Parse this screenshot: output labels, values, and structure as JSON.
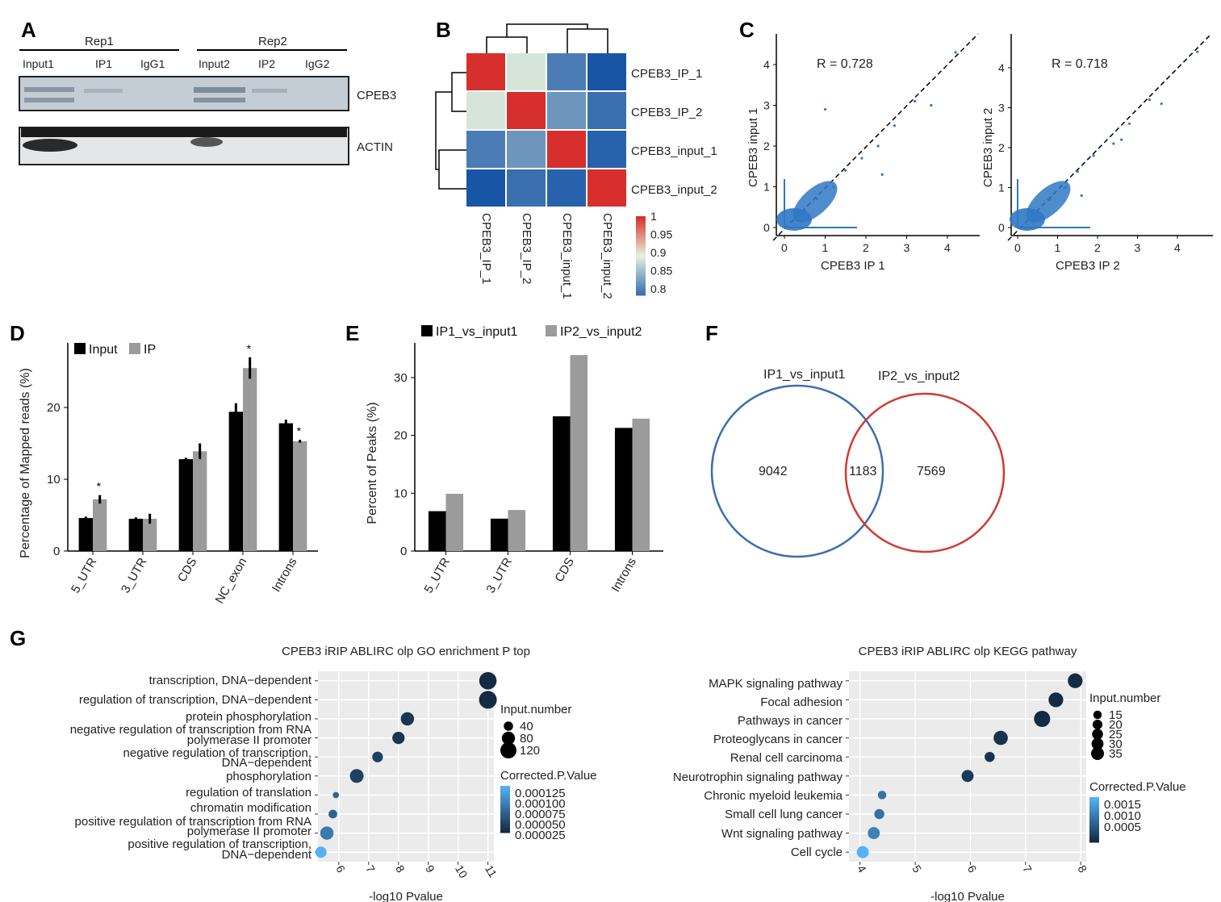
{
  "panel_letters": [
    "A",
    "B",
    "C",
    "D",
    "E",
    "F",
    "G"
  ],
  "blot": {
    "rep_labels": [
      "Rep1",
      "Rep2"
    ],
    "lanes": [
      "Input1",
      "IP1",
      "IgG1",
      "Input2",
      "IP2",
      "IgG2"
    ],
    "bands": [
      "CPEB3",
      "ACTIN"
    ]
  },
  "chart_data": [
    {
      "panel": "B",
      "type": "heatmap",
      "rows": [
        "CPEB3_IP_1",
        "CPEB3_IP_2",
        "CPEB3_input_1",
        "CPEB3_input_2"
      ],
      "cols": [
        "CPEB3_IP_1",
        "CPEB3_IP_2",
        "CPEB3_input_1",
        "CPEB3_input_2"
      ],
      "values": [
        [
          1,
          0.89,
          0.81,
          0.78
        ],
        [
          0.89,
          1,
          0.83,
          0.8
        ],
        [
          0.81,
          0.83,
          1,
          0.79
        ],
        [
          0.78,
          0.8,
          0.79,
          1
        ]
      ],
      "colorbar_ticks": [
        "1",
        "0.95",
        "0.9",
        "0.85",
        "0.8"
      ],
      "colors": {
        "low": "#3a6fb0",
        "mid": "#e6f2dd",
        "high": "#d7302c"
      }
    },
    {
      "panel": "C",
      "type": "scatter",
      "plots": [
        {
          "xlabel": "CPEB3 IP 1",
          "ylabel": "CPEB3 input 1",
          "annotation": "R = 0.728",
          "xticks": [
            "0",
            "1",
            "2",
            "3",
            "4"
          ],
          "yticks": [
            "0",
            "1",
            "2",
            "3",
            "4"
          ],
          "points": [
            [
              0.5,
              0.4
            ],
            [
              0.8,
              0.7
            ],
            [
              1.2,
              1.0
            ],
            [
              1.5,
              1.4
            ],
            [
              1.9,
              1.7
            ],
            [
              2.3,
              2.0
            ],
            [
              2.7,
              2.5
            ],
            [
              3.2,
              3.1
            ],
            [
              3.6,
              3.0
            ],
            [
              4.2,
              4.3
            ],
            [
              1.0,
              2.9
            ],
            [
              2.4,
              1.3
            ]
          ]
        },
        {
          "xlabel": "CPEB3 IP 2",
          "ylabel": "CPEB3 input 2",
          "annotation": "R = 0.718",
          "xticks": [
            "0",
            "1",
            "2",
            "3",
            "4"
          ],
          "yticks": [
            "0",
            "1",
            "2",
            "3",
            "4"
          ],
          "points": [
            [
              0.5,
              0.4
            ],
            [
              0.8,
              0.7
            ],
            [
              1.2,
              1.0
            ],
            [
              1.5,
              1.4
            ],
            [
              1.9,
              1.8
            ],
            [
              2.4,
              2.1
            ],
            [
              2.8,
              2.6
            ],
            [
              3.3,
              3.2
            ],
            [
              3.6,
              3.1
            ],
            [
              4.5,
              4.4
            ],
            [
              2.6,
              2.2
            ],
            [
              1.6,
              0.8
            ]
          ]
        }
      ],
      "point_color": "#2f78c4"
    },
    {
      "panel": "D",
      "type": "bar",
      "categories": [
        "5_UTR",
        "3_UTR",
        "CDS",
        "NC_exon",
        "Introns"
      ],
      "series": [
        {
          "name": "Input",
          "values": [
            4.6,
            4.5,
            12.8,
            19.4,
            17.8
          ]
        },
        {
          "name": "IP",
          "values": [
            7.2,
            4.5,
            13.9,
            25.5,
            15.3
          ]
        }
      ],
      "errors": [
        [
          0.2,
          0.2,
          0.2,
          1.2,
          0.5
        ],
        [
          0.6,
          0.7,
          1.1,
          1.5,
          0.2
        ]
      ],
      "significant": [
        true,
        false,
        false,
        true,
        true
      ],
      "ylabel": "Percentage of Mapped reads (%)",
      "yticks": [
        "0",
        "10",
        "20"
      ],
      "ylim": [
        0,
        29
      ],
      "colors": [
        "#000000",
        "#9b9b9b"
      ],
      "legend": "top-left"
    },
    {
      "panel": "E",
      "type": "bar",
      "categories": [
        "5_UTR",
        "3_UTR",
        "CDS",
        "Introns"
      ],
      "series": [
        {
          "name": "IP1_vs_input1",
          "values": [
            6.9,
            5.6,
            23.3,
            21.3
          ]
        },
        {
          "name": "IP2_vs_input2",
          "values": [
            9.9,
            7.1,
            33.9,
            22.9
          ]
        }
      ],
      "ylabel": "Percent of Peaks (%)",
      "yticks": [
        "0",
        "10",
        "20",
        "30"
      ],
      "ylim": [
        0,
        36
      ],
      "colors": [
        "#000000",
        "#9b9b9b"
      ],
      "legend": "top"
    },
    {
      "panel": "F",
      "type": "venn",
      "sets": [
        "IP1_vs_input1",
        "IP2_vs_input2"
      ],
      "counts": {
        "only_left": "9042",
        "both": "1183",
        "only_right": "7569"
      },
      "colors": [
        "#3a6fb0",
        "#d03a32"
      ]
    },
    {
      "panel": "G",
      "type": "scatter",
      "title": "CPEB3 iRIP ABLIRC olp GO enrichment P top",
      "xlabel": "-log10 Pvalue",
      "xticks": [
        "6",
        "7",
        "8",
        "9",
        "10",
        "11"
      ],
      "xlim": [
        5.3,
        11.2
      ],
      "terms": [
        "transcription, DNA−dependent",
        "regulation of transcription, DNA−dependent",
        "protein phosphorylation",
        "negative regulation of transcription from RNA",
        "polymerase II promoter",
        "negative regulation of transcription,",
        "DNA−dependent",
        "phosphorylation",
        "regulation of translation",
        "chromatin modification",
        "positive regulation of transcription from RNA",
        "polymerase II promoter",
        "positive regulation of transcription,",
        "DNA−dependent"
      ],
      "points": [
        {
          "x": 11.0,
          "size": 120,
          "p": 1e-05
        },
        {
          "x": 11.0,
          "size": 125,
          "p": 1e-05
        },
        {
          "x": 8.3,
          "size": 70,
          "p": 2e-05
        },
        {
          "x": 8.0,
          "size": 60,
          "p": 2e-05
        },
        {
          "x": 7.3,
          "size": 45,
          "p": 3e-05
        },
        {
          "x": 6.6,
          "size": 75,
          "p": 3e-05
        },
        {
          "x": 5.9,
          "size": 15,
          "p": 6e-05
        },
        {
          "x": 5.8,
          "size": 30,
          "p": 6e-05
        },
        {
          "x": 5.6,
          "size": 70,
          "p": 8e-05
        },
        {
          "x": 5.4,
          "size": 50,
          "p": 0.00013
        }
      ],
      "legend_size_title": "Input.number",
      "legend_size_labels": [
        "40",
        "80",
        "120"
      ],
      "legend_color_title": "Corrected.P.Value",
      "legend_color_labels": [
        "0.000125",
        "0.000100",
        "0.000075",
        "0.000050",
        "0.000025"
      ],
      "colors": {
        "low": "#132b43",
        "high": "#56b1f7",
        "panel": "#ebebeb"
      }
    },
    {
      "panel": "G",
      "type": "scatter",
      "title": "CPEB3 iRIP ABLIRC olp KEGG pathway",
      "xlabel": "-log10 Pvalue",
      "xticks": [
        "4",
        "5",
        "6",
        "7",
        "8"
      ],
      "xlim": [
        3.8,
        8.1
      ],
      "terms": [
        "MAPK signaling pathway",
        "Focal adhesion",
        "Pathways in cancer",
        "Proteoglycans in cancer",
        "Renal cell carcinoma",
        "Neurotrophin signaling pathway",
        "Chronic myeloid leukemia",
        "Small cell lung cancer",
        "Wnt signaling pathway",
        "Cell cycle"
      ],
      "points": [
        {
          "x": 7.9,
          "size": 30,
          "p": 0.0001
        },
        {
          "x": 7.55,
          "size": 30,
          "p": 0.0001
        },
        {
          "x": 7.3,
          "size": 36,
          "p": 0.0001
        },
        {
          "x": 6.55,
          "size": 28,
          "p": 0.0002
        },
        {
          "x": 6.35,
          "size": 14,
          "p": 0.0002
        },
        {
          "x": 5.95,
          "size": 20,
          "p": 0.0003
        },
        {
          "x": 4.4,
          "size": 10,
          "p": 0.001
        },
        {
          "x": 4.35,
          "size": 14,
          "p": 0.001
        },
        {
          "x": 4.25,
          "size": 20,
          "p": 0.0012
        },
        {
          "x": 4.05,
          "size": 20,
          "p": 0.0018
        }
      ],
      "legend_size_title": "Input.number",
      "legend_size_labels": [
        "15",
        "20",
        "25",
        "30",
        "35"
      ],
      "legend_color_title": "Corrected.P.Value",
      "legend_color_labels": [
        "0.0015",
        "0.0010",
        "0.0005"
      ],
      "colors": {
        "low": "#132b43",
        "high": "#56b1f7",
        "panel": "#ebebeb"
      }
    }
  ]
}
